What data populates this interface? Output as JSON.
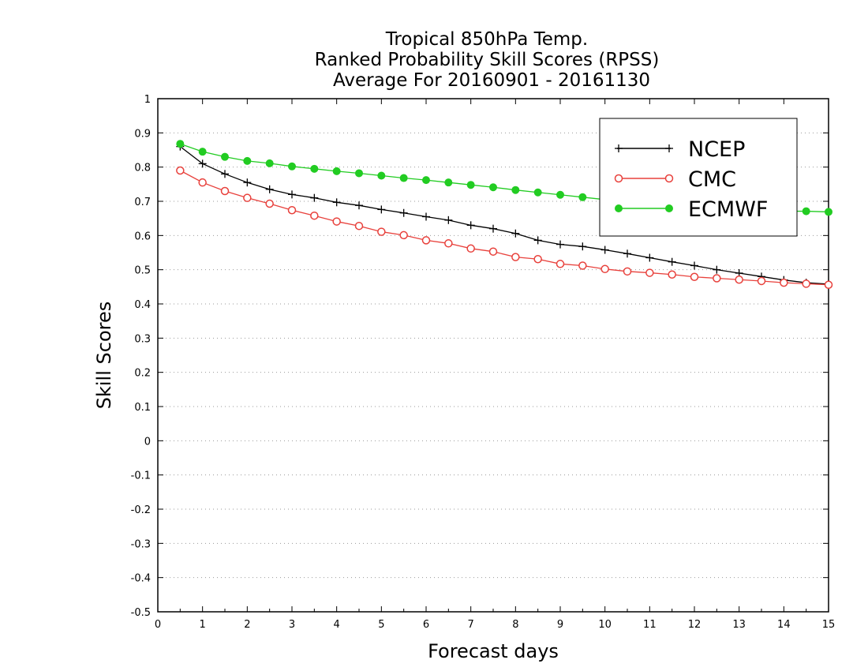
{
  "chart_data": {
    "type": "line",
    "title_lines": [
      "Tropical 850hPa Temp.",
      "Ranked Probability Skill Scores (RPSS)",
      "Average For 20160901 - 20161130"
    ],
    "xlabel": "Forecast days",
    "ylabel": "Skill Scores",
    "xlim": [
      0,
      15
    ],
    "ylim": [
      -0.5,
      1
    ],
    "x_ticks": [
      "0",
      "1",
      "2",
      "3",
      "4",
      "5",
      "6",
      "7",
      "8",
      "9",
      "10",
      "11",
      "12",
      "13",
      "14",
      "15"
    ],
    "y_ticks": [
      "1",
      "0.9",
      "0.8",
      "0.7",
      "0.6",
      "0.5",
      "0.4",
      "0.3",
      "0.2",
      "0.1",
      "0",
      "-0.1",
      "-0.2",
      "-0.3",
      "-0.4",
      "-0.5"
    ],
    "grid": "horizontal dotted",
    "legend_position": "top-right",
    "x": [
      0.5,
      1,
      1.5,
      2,
      2.5,
      3,
      3.5,
      4,
      4.5,
      5,
      5.5,
      6,
      6.5,
      7,
      7.5,
      8,
      8.5,
      9,
      9.5,
      10,
      10.5,
      11,
      11.5,
      12,
      12.5,
      13,
      13.5,
      14,
      14.5,
      15
    ],
    "series": [
      {
        "name": "NCEP",
        "color": "#000000",
        "marker": "plus",
        "values": [
          0.86,
          0.81,
          0.78,
          0.755,
          0.735,
          0.72,
          0.71,
          0.697,
          0.688,
          0.676,
          0.666,
          0.655,
          0.645,
          0.63,
          0.62,
          0.606,
          0.586,
          0.574,
          0.568,
          0.558,
          0.547,
          0.535,
          0.523,
          0.512,
          0.5,
          0.49,
          0.48,
          0.47,
          0.462,
          0.458
        ]
      },
      {
        "name": "CMC",
        "color": "#e8413c",
        "marker": "open-circle",
        "values": [
          0.79,
          0.755,
          0.73,
          0.71,
          0.693,
          0.674,
          0.658,
          0.641,
          0.628,
          0.611,
          0.601,
          0.586,
          0.577,
          0.562,
          0.553,
          0.537,
          0.531,
          0.517,
          0.512,
          0.502,
          0.495,
          0.491,
          0.486,
          0.479,
          0.475,
          0.471,
          0.467,
          0.462,
          0.459,
          0.456
        ]
      },
      {
        "name": "ECMWF",
        "color": "#22cc22",
        "marker": "filled-circle",
        "values": [
          0.868,
          0.845,
          0.83,
          0.818,
          0.811,
          0.802,
          0.795,
          0.788,
          0.782,
          0.775,
          0.768,
          0.762,
          0.755,
          0.748,
          0.741,
          0.733,
          0.726,
          0.719,
          0.712,
          0.705,
          0.699,
          0.693,
          0.688,
          0.683,
          0.678,
          0.675,
          0.673,
          0.671,
          0.671,
          0.669
        ]
      }
    ]
  }
}
